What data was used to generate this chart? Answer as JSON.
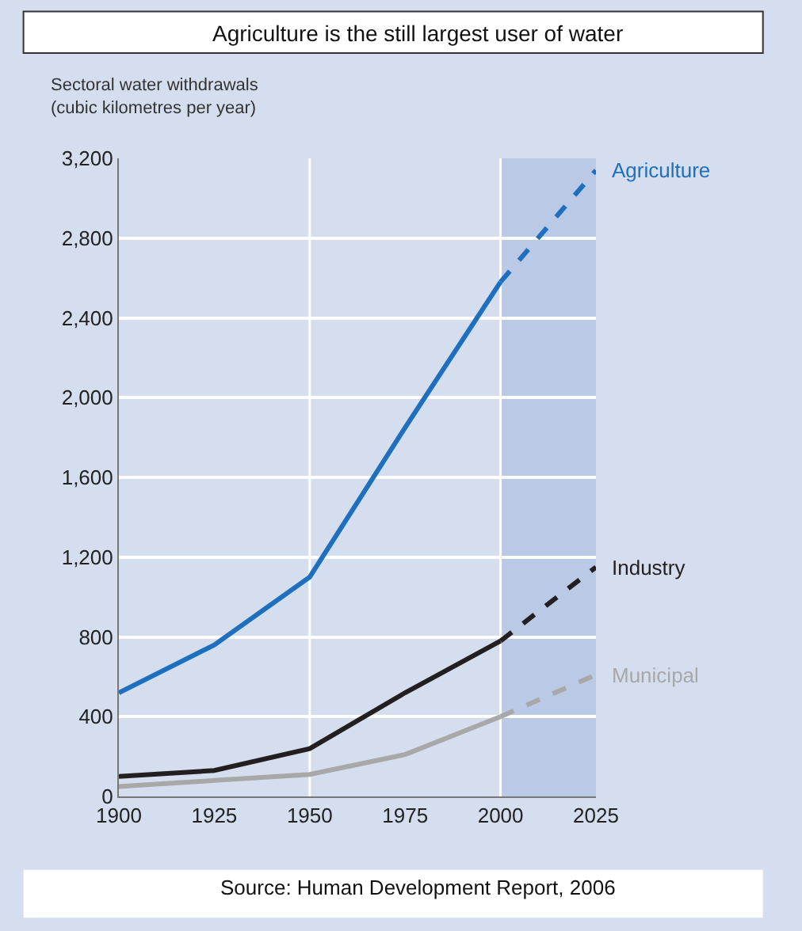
{
  "chart_data": {
    "type": "line",
    "title": "Agriculture is the still largest user of water",
    "ylabel": "Sectoral water withdrawals\n(cubic kilometres per year)",
    "x": [
      1900,
      1925,
      1950,
      1975,
      2000,
      2025
    ],
    "series": [
      {
        "name": "Agriculture",
        "color": "#1f6fbf",
        "values": [
          520,
          760,
          1100,
          1850,
          2580,
          null
        ]
      },
      {
        "color": "#1f6fbf",
        "values": [
          null,
          null,
          null,
          null,
          2580,
          3140
        ],
        "line_style": "dashed"
      },
      {
        "name": "Industry",
        "color": "#231f20",
        "values": [
          100,
          130,
          240,
          520,
          780,
          null
        ]
      },
      {
        "color": "#231f20",
        "values": [
          null,
          null,
          null,
          null,
          780,
          1150
        ],
        "line_style": "dashed"
      },
      {
        "name": "Municipal",
        "color": "#a8a8a8",
        "values": [
          50,
          80,
          110,
          210,
          400,
          null
        ]
      },
      {
        "color": "#a8a8a8",
        "values": [
          null,
          null,
          null,
          null,
          400,
          610
        ],
        "line_style": "dashed"
      }
    ],
    "xlim": [
      1900,
      2025
    ],
    "xticks": [
      1900,
      1925,
      1950,
      1975,
      2000,
      2025
    ],
    "ylim": [
      0,
      3200
    ],
    "yticks": [
      0,
      {
        "value": 400,
        "label": "400"
      },
      {
        "value": 800,
        "label": "800"
      },
      {
        "value": 1200,
        "label": "1,200"
      },
      {
        "value": 1600,
        "label": "1,600"
      },
      {
        "value": 2000,
        "label": "2,000"
      },
      {
        "value": 2400,
        "label": "2,400"
      },
      {
        "value": 2800,
        "label": "2,800"
      },
      {
        "value": 3200,
        "label": "3,200"
      }
    ],
    "grid": "y",
    "line_style": "solid",
    "marker": "none",
    "bands": [
      {
        "axis": "x",
        "from": 2000,
        "to": 2025,
        "color": "#b9c9e6"
      }
    ],
    "ref_lines": [
      {
        "axis": "x",
        "value": 1950,
        "color": "#ffffff"
      },
      {
        "axis": "x",
        "value": 2000,
        "color": "#ffffff"
      }
    ],
    "annotations": [
      "Source: Human Development Report, 2006"
    ]
  }
}
